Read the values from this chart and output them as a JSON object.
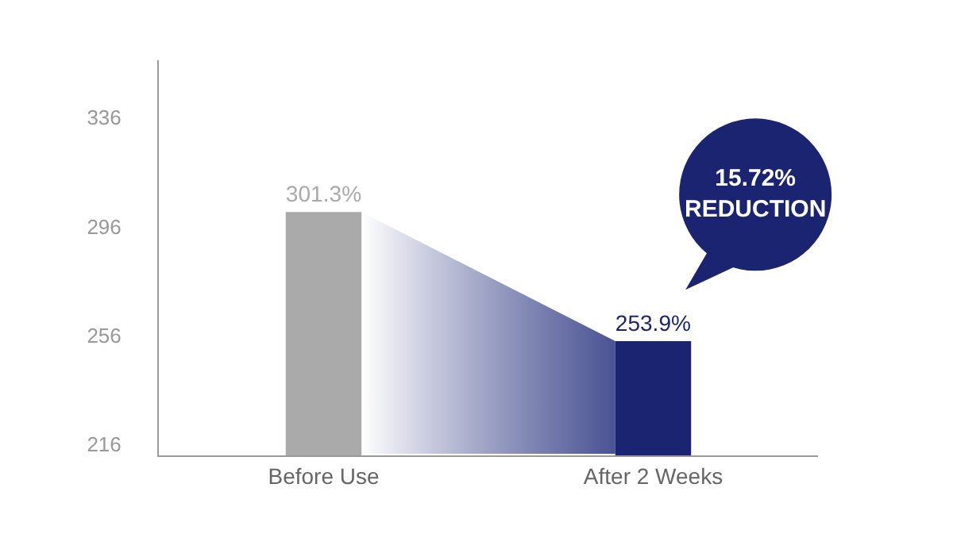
{
  "chart_data": {
    "type": "bar",
    "categories": [
      "Before Use",
      "After 2 Weeks"
    ],
    "values": [
      301.3,
      253.9
    ],
    "colors": [
      "#aaaaaa",
      "#1b2470"
    ],
    "value_labels": [
      "301.3%",
      "253.9%"
    ],
    "ylim": [
      212,
      357
    ],
    "yticks": [
      216,
      256,
      296,
      336
    ],
    "grid": false,
    "annotations": [
      "15.72% REDUCTION"
    ]
  }
}
